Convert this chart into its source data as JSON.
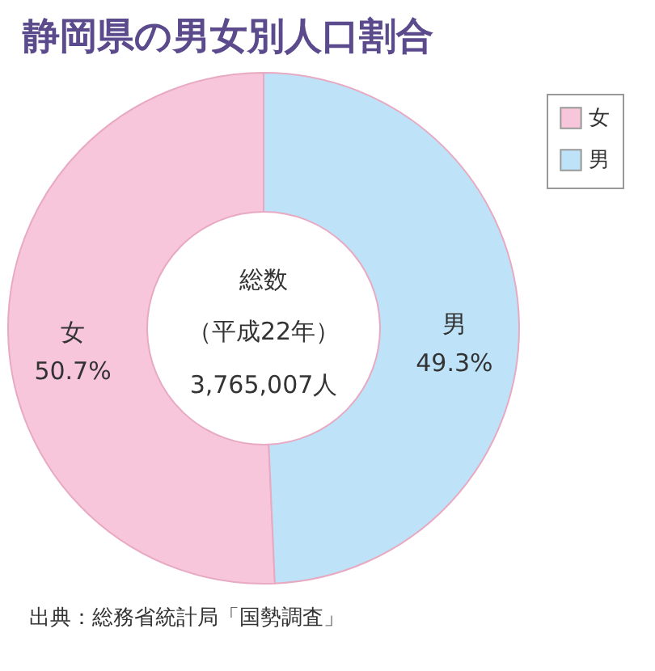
{
  "chart_data": {
    "type": "donut",
    "title": "静岡県の男女別人口割合",
    "categories": [
      "女",
      "男"
    ],
    "values": [
      50.7,
      49.3
    ],
    "value_labels": [
      "50.7%",
      "49.3%"
    ],
    "colors": [
      "#f7c6da",
      "#bee3f8"
    ],
    "legend": "top right",
    "annotations": [
      "総数",
      "（平成22年）",
      "3,765,007人",
      "出典：総務省統計局「国勢調査」"
    ]
  }
}
